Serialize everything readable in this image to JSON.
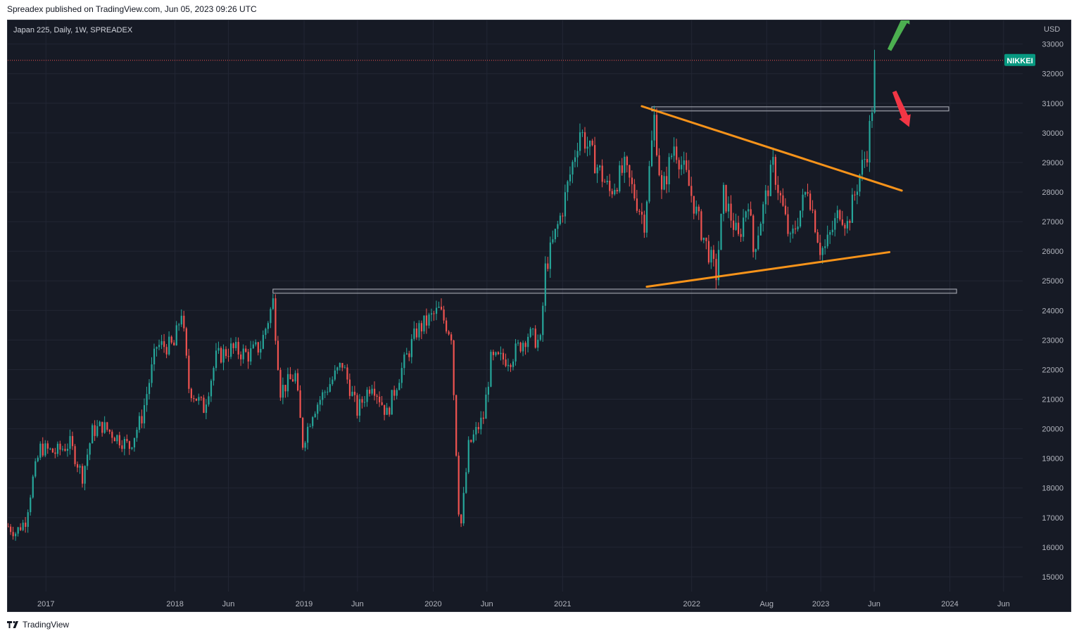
{
  "header": {
    "published": "Spreadex published on TradingView.com, Jun 05, 2023 09:26 UTC"
  },
  "footer": {
    "brand": "TradingView"
  },
  "colors": {
    "background": "#161a25",
    "grid": "#222634",
    "up": "#26a69a",
    "down": "#ef5350",
    "trendline": "#f7931a",
    "zone_border": "#b2b5be",
    "badge": "#089981",
    "arrow_up": "#4caf50",
    "arrow_down": "#f23645",
    "axis_text": "#b2b5be"
  },
  "chart_data": {
    "type": "candlestick",
    "title": "Japan 225, Daily, 1W, SPREADEX",
    "currency": "USD",
    "price_badge": "NIKKEI",
    "last_price": 32450,
    "ylim": [
      14500,
      33800
    ],
    "y_ticks": [
      15000,
      16000,
      17000,
      18000,
      19000,
      20000,
      21000,
      22000,
      23000,
      24000,
      25000,
      26000,
      27000,
      28000,
      29000,
      30000,
      31000,
      32000,
      33000
    ],
    "xlim": [
      "2016-09-15",
      "2024-07-25"
    ],
    "x_ticks": [
      {
        "label": "2017",
        "date": "2017-01-01"
      },
      {
        "label": "2018",
        "date": "2018-01-01"
      },
      {
        "label": "Jun",
        "date": "2018-06-01"
      },
      {
        "label": "2019",
        "date": "2019-01-01"
      },
      {
        "label": "Jun",
        "date": "2019-06-01"
      },
      {
        "label": "2020",
        "date": "2020-01-01"
      },
      {
        "label": "Jun",
        "date": "2020-06-01"
      },
      {
        "label": "2021",
        "date": "2021-01-01"
      },
      {
        "label": "2022",
        "date": "2022-01-01"
      },
      {
        "label": "Aug",
        "date": "2022-08-01"
      },
      {
        "label": "2023",
        "date": "2023-01-01"
      },
      {
        "label": "Jun",
        "date": "2023-06-01"
      },
      {
        "label": "2024",
        "date": "2024-01-01"
      },
      {
        "label": "Jun",
        "date": "2024-06-01"
      }
    ],
    "price_path": [
      [
        "2016-09-16",
        16700
      ],
      [
        "2016-10-07",
        16500
      ],
      [
        "2016-11-04",
        16900
      ],
      [
        "2016-11-25",
        18300
      ],
      [
        "2016-12-16",
        19350
      ],
      [
        "2017-01-27",
        19200
      ],
      [
        "2017-03-10",
        19500
      ],
      [
        "2017-04-14",
        18400
      ],
      [
        "2017-05-12",
        19900
      ],
      [
        "2017-06-09",
        20100
      ],
      [
        "2017-08-25",
        19400
      ],
      [
        "2017-09-29",
        20400
      ],
      [
        "2017-11-10",
        22800
      ],
      [
        "2017-12-29",
        22800
      ],
      [
        "2018-01-19",
        24000
      ],
      [
        "2018-02-09",
        21400
      ],
      [
        "2018-03-23",
        20700
      ],
      [
        "2018-04-27",
        22400
      ],
      [
        "2018-06-08",
        22700
      ],
      [
        "2018-07-27",
        22500
      ],
      [
        "2018-08-31",
        22800
      ],
      [
        "2018-10-05",
        24300
      ],
      [
        "2018-10-26",
        21300
      ],
      [
        "2018-12-07",
        21800
      ],
      [
        "2018-12-28",
        19500
      ],
      [
        "2019-01-25",
        20600
      ],
      [
        "2019-04-19",
        22200
      ],
      [
        "2019-05-31",
        20600
      ],
      [
        "2019-07-12",
        21600
      ],
      [
        "2019-08-23",
        20500
      ],
      [
        "2019-09-27",
        21800
      ],
      [
        "2019-11-15",
        23300
      ],
      [
        "2020-01-17",
        24000
      ],
      [
        "2020-02-21",
        23200
      ],
      [
        "2020-03-13",
        17300
      ],
      [
        "2020-03-20",
        16800
      ],
      [
        "2020-04-10",
        19400
      ],
      [
        "2020-05-22",
        20400
      ],
      [
        "2020-06-12",
        22300
      ],
      [
        "2020-08-07",
        22400
      ],
      [
        "2020-09-25",
        23200
      ],
      [
        "2020-10-30",
        22900
      ],
      [
        "2020-11-13",
        25400
      ],
      [
        "2020-12-31",
        27400
      ],
      [
        "2021-02-19",
        30100
      ],
      [
        "2021-03-26",
        29200
      ],
      [
        "2021-05-14",
        28000
      ],
      [
        "2021-06-25",
        28800
      ],
      [
        "2021-08-20",
        27000
      ],
      [
        "2021-09-17",
        30500
      ],
      [
        "2021-10-08",
        27900
      ],
      [
        "2021-11-12",
        29600
      ],
      [
        "2021-12-17",
        28500
      ],
      [
        "2022-01-28",
        26700
      ],
      [
        "2022-03-11",
        25200
      ],
      [
        "2022-04-01",
        27900
      ],
      [
        "2022-05-13",
        26400
      ],
      [
        "2022-06-10",
        27800
      ],
      [
        "2022-06-24",
        26000
      ],
      [
        "2022-08-19",
        28900
      ],
      [
        "2022-10-07",
        26300
      ],
      [
        "2022-11-25",
        28200
      ],
      [
        "2022-12-30",
        26100
      ],
      [
        "2023-01-13",
        26100
      ],
      [
        "2023-02-24",
        27400
      ],
      [
        "2023-03-17",
        26900
      ],
      [
        "2023-04-21",
        28600
      ],
      [
        "2023-05-12",
        29400
      ],
      [
        "2023-05-26",
        30900
      ],
      [
        "2023-06-02",
        32450
      ]
    ],
    "horizontal_zones": [
      {
        "name": "resistance-2018",
        "start": "2018-10-05",
        "end": "2024-01-20",
        "low": 24580,
        "high": 24720
      },
      {
        "name": "resistance-2021",
        "start": "2021-09-10",
        "end": "2023-12-29",
        "low": 30740,
        "high": 30880
      }
    ],
    "trendlines": [
      {
        "name": "upper-trendline",
        "p1": [
          "2021-08-13",
          30900
        ],
        "p2": [
          "2023-08-18",
          28050
        ]
      },
      {
        "name": "lower-trendline",
        "p1": [
          "2021-08-27",
          24800
        ],
        "p2": [
          "2023-07-14",
          25970
        ]
      }
    ],
    "arrows": [
      {
        "name": "bullish-arrow",
        "direction": "up",
        "from": [
          "2023-07-14",
          32800
        ],
        "to": [
          "2023-09-08",
          34100
        ]
      },
      {
        "name": "bearish-arrow",
        "direction": "down",
        "from": [
          "2023-07-28",
          31400
        ],
        "to": [
          "2023-09-08",
          30200
        ]
      }
    ]
  }
}
